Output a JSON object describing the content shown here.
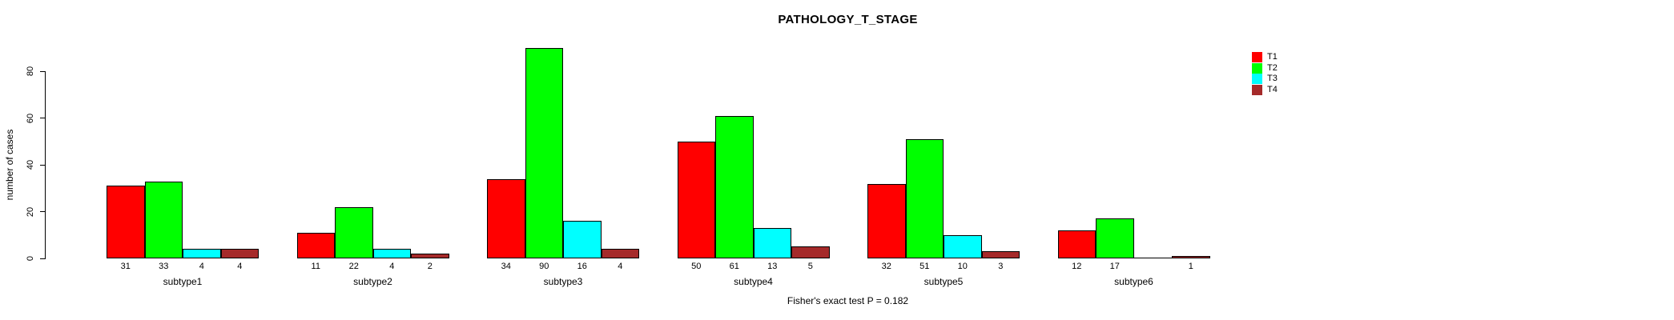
{
  "chart_data": {
    "type": "bar",
    "title": "PATHOLOGY_T_STAGE",
    "xlabel": "",
    "ylabel": "number of cases",
    "annotation": "Fisher's exact test P = 0.182",
    "categories": [
      "subtype1",
      "subtype2",
      "subtype3",
      "subtype4",
      "subtype5",
      "subtype6"
    ],
    "series": [
      {
        "name": "T1",
        "color": "#ff0000",
        "values": [
          31,
          11,
          34,
          50,
          32,
          12
        ]
      },
      {
        "name": "T2",
        "color": "#00ff00",
        "values": [
          33,
          22,
          90,
          61,
          51,
          17
        ]
      },
      {
        "name": "T3",
        "color": "#00ffff",
        "values": [
          4,
          4,
          16,
          13,
          10,
          0
        ]
      },
      {
        "name": "T4",
        "color": "#a52a2a",
        "values": [
          4,
          2,
          4,
          5,
          3,
          1
        ]
      }
    ],
    "bar_value_labels": [
      [
        "31",
        "33",
        "4",
        "4"
      ],
      [
        "11",
        "22",
        "4",
        "2"
      ],
      [
        "34",
        "90",
        "16",
        "4"
      ],
      [
        "50",
        "61",
        "13",
        "5"
      ],
      [
        "32",
        "51",
        "10",
        "3"
      ],
      [
        "12",
        "17",
        "",
        "1"
      ]
    ],
    "yticks": [
      0,
      20,
      40,
      60,
      80
    ],
    "ylim": [
      0,
      90
    ],
    "grid": false,
    "legend": [
      "T1",
      "T2",
      "T3",
      "T4"
    ],
    "legend_position": "right",
    "axis_color": "#000000",
    "bar_border_color": "#000000",
    "background_color": "#ffffff"
  }
}
